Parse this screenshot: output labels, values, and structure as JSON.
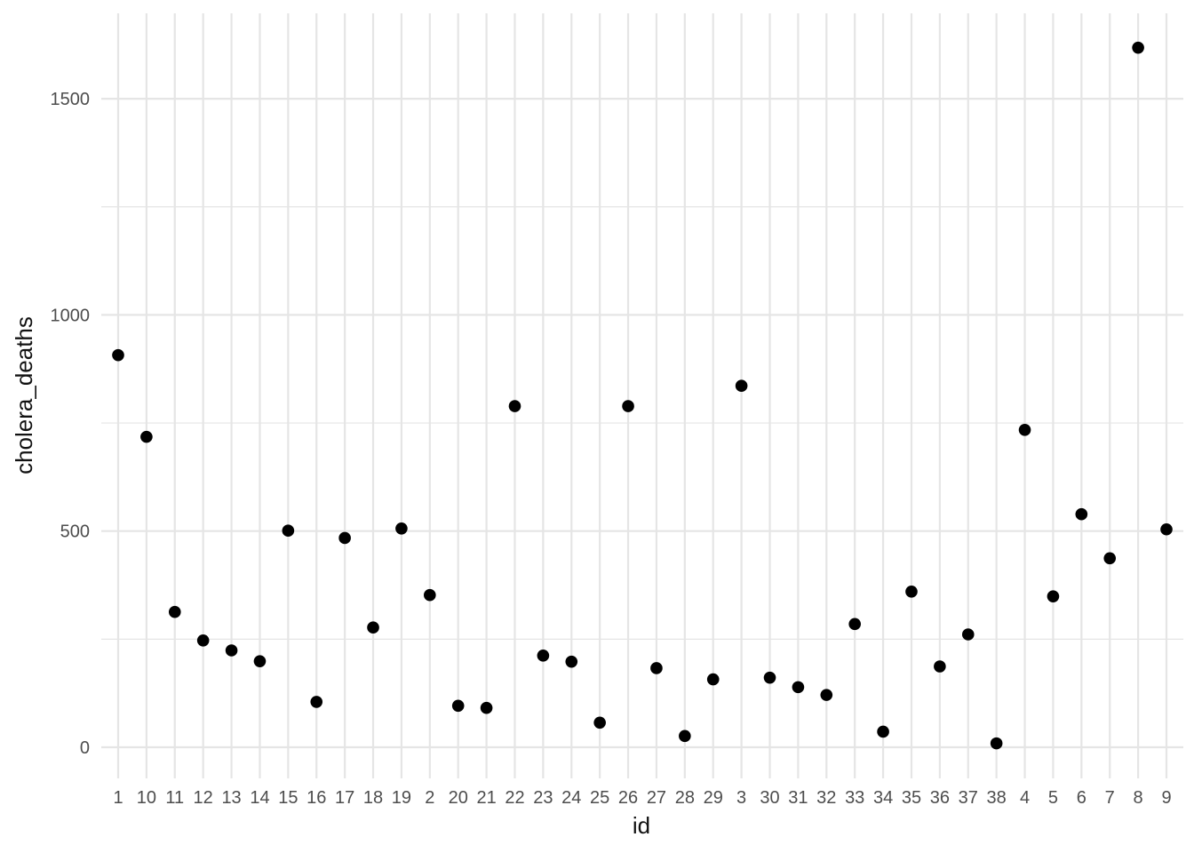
{
  "figure": {
    "background": "#ffffff"
  },
  "chart_data": {
    "type": "scatter",
    "title": "",
    "xlabel": "id",
    "ylabel": "cholera_deaths",
    "categories": [
      "1",
      "10",
      "11",
      "12",
      "13",
      "14",
      "15",
      "16",
      "17",
      "18",
      "19",
      "2",
      "20",
      "21",
      "22",
      "23",
      "24",
      "25",
      "26",
      "27",
      "28",
      "29",
      "3",
      "30",
      "31",
      "32",
      "33",
      "34",
      "35",
      "36",
      "37",
      "38",
      "4",
      "5",
      "6",
      "7",
      "8",
      "9"
    ],
    "values": [
      907,
      718,
      313,
      247,
      224,
      199,
      501,
      105,
      484,
      277,
      506,
      352,
      96,
      91,
      789,
      212,
      198,
      57,
      789,
      183,
      26,
      157,
      836,
      161,
      139,
      121,
      285,
      36,
      360,
      187,
      261,
      9,
      734,
      349,
      539,
      437,
      1618,
      504
    ],
    "y_ticks": [
      0,
      500,
      1000,
      1500
    ],
    "y_minor_gridlines": [
      250,
      750,
      1250
    ],
    "ylim": [
      -72,
      1699
    ],
    "grid": "on",
    "legend": "none",
    "point_color": "#000000",
    "grid_color": "#e5e5e5",
    "tick_label_color": "#4d4d4d",
    "axis_title_color": "#111111"
  }
}
